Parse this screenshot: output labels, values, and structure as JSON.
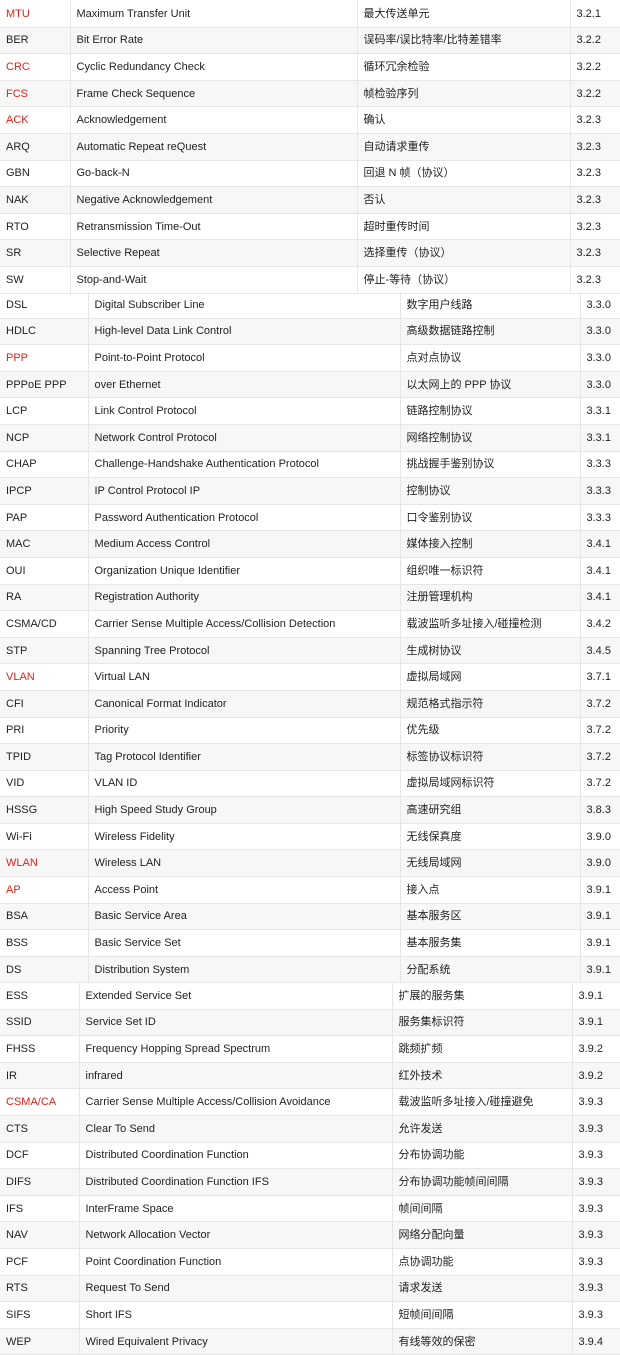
{
  "colors": {
    "highlight": "#e2231a",
    "text": "#222222",
    "grid": "#e6e6e6",
    "stripe": "#f7f7f7"
  },
  "blocks": [
    {
      "rows": [
        {
          "abbr": "MTU",
          "full": "Maximum Transfer Unit",
          "cn": "最大传送单元",
          "sec": "3.2.1",
          "hl": true
        },
        {
          "abbr": "BER",
          "full": "Bit Error Rate",
          "cn": "误码率/误比特率/比特差错率",
          "sec": "3.2.2",
          "hl": false
        },
        {
          "abbr": "CRC",
          "full": " Cyclic Redundancy Check",
          "cn": "循环冗余检验",
          "sec": "3.2.2",
          "hl": true
        },
        {
          "abbr": "FCS",
          "full": "Frame Check Sequence",
          "cn": "帧检验序列",
          "sec": "3.2.2",
          "hl": true
        },
        {
          "abbr": "ACK",
          "full": " Acknowledgement",
          "cn": "确认",
          "sec": "3.2.3",
          "hl": true
        },
        {
          "abbr": "ARQ",
          "full": "Automatic Repeat reQuest",
          "cn": "自动请求重传",
          "sec": "3.2.3",
          "hl": false
        },
        {
          "abbr": "GBN",
          "full": "Go-back-N",
          "cn": "回退 N 帧（协议）",
          "sec": "3.2.3",
          "hl": false
        },
        {
          "abbr": "NAK",
          "full": "Negative Acknowledgement",
          "cn": "否认",
          "sec": "3.2.3",
          "hl": false
        },
        {
          "abbr": "RTO",
          "full": "Retransmission Time-Out",
          "cn": "超时重传时间",
          "sec": "3.2.3",
          "hl": false
        },
        {
          "abbr": "SR",
          "full": "Selective Repeat",
          "cn": "选择重传（协议）",
          "sec": "3.2.3",
          "hl": false
        },
        {
          "abbr": "SW",
          "full": "Stop-and-Wait",
          "cn": "停止-等待（协议）",
          "sec": "3.2.3",
          "hl": false
        }
      ]
    },
    {
      "rows": [
        {
          "abbr": "DSL",
          "full": "Digital Subscriber Line",
          "cn": "数字用户线路",
          "sec": "3.3.0",
          "hl": false
        },
        {
          "abbr": "HDLC",
          "full": "High-level Data Link Control",
          "cn": "高级数据链路控制",
          "sec": "3.3.0",
          "hl": false
        },
        {
          "abbr": "PPP",
          "full": "Point-to-Point Protocol",
          "cn": "点对点协议",
          "sec": "3.3.0",
          "hl": true
        },
        {
          "abbr": "PPPoE PPP",
          "full": "over Ethernet",
          "cn": "以太网上的 PPP 协议",
          "sec": "3.3.0",
          "hl": false
        },
        {
          "abbr": "LCP",
          "full": "Link Control Protocol",
          "cn": "链路控制协议",
          "sec": "3.3.1",
          "hl": false
        },
        {
          "abbr": "NCP",
          "full": "Network Control Protocol",
          "cn": "网络控制协议",
          "sec": "3.3.1",
          "hl": false
        },
        {
          "abbr": "CHAP",
          "full": "Challenge-Handshake Authentication Protocol",
          "cn": "挑战握手鉴别协议",
          "sec": "3.3.3",
          "hl": false
        },
        {
          "abbr": "IPCP",
          "full": "IP Control Protocol IP",
          "cn": "控制协议",
          "sec": "3.3.3",
          "hl": false
        },
        {
          "abbr": "PAP",
          "full": "Password Authentication Protocol",
          "cn": "口令鉴别协议",
          "sec": "3.3.3",
          "hl": false
        },
        {
          "abbr": "MAC",
          "full": " Medium Access Control",
          "cn": "媒体接入控制",
          "sec": "3.4.1",
          "hl": false
        },
        {
          "abbr": "OUI",
          "full": "Organization Unique Identifier",
          "cn": "组织唯一标识符",
          "sec": "3.4.1",
          "hl": false
        },
        {
          "abbr": "RA",
          "full": "Registration Authority",
          "cn": "注册管理机构",
          "sec": "3.4.1",
          "hl": false
        },
        {
          "abbr": "CSMA/CD",
          "full": " Carrier Sense Multiple Access/Collision Detection",
          "cn": "载波监听多址接入/碰撞检测",
          "sec": "3.4.2",
          "hl": false
        },
        {
          "abbr": "STP",
          "full": "Spanning Tree Protocol",
          "cn": "生成树协议",
          "sec": "3.4.5",
          "hl": false
        },
        {
          "abbr": "VLAN",
          "full": "Virtual LAN",
          "cn": "虚拟局域网",
          "sec": "3.7.1",
          "hl": true
        },
        {
          "abbr": "CFI",
          "full": "Canonical Format Indicator",
          "cn": "规范格式指示符",
          "sec": "3.7.2",
          "hl": false
        },
        {
          "abbr": "PRI",
          "full": "Priority",
          "cn": "优先级",
          "sec": "3.7.2",
          "hl": false
        },
        {
          "abbr": "TPID",
          "full": "Tag Protocol Identifier",
          "cn": "标签协议标识符",
          "sec": "3.7.2",
          "hl": false
        },
        {
          "abbr": "VID",
          "full": "VLAN ID",
          "cn": "虚拟局域网标识符",
          "sec": "3.7.2",
          "hl": false
        },
        {
          "abbr": "HSSG",
          "full": "High Speed Study Group",
          "cn": "高速研究组",
          "sec": "3.8.3",
          "hl": false
        },
        {
          "abbr": "Wi-Fi",
          "full": "Wireless Fidelity",
          "cn": "无线保真度",
          "sec": "3.9.0",
          "hl": false
        },
        {
          "abbr": "WLAN",
          "full": "Wireless LAN",
          "cn": "无线局域网",
          "sec": "3.9.0",
          "hl": true
        },
        {
          "abbr": "AP",
          "full": "Access Point",
          "cn": "接入点",
          "sec": "3.9.1",
          "hl": true
        },
        {
          "abbr": "BSA",
          "full": "Basic Service Area",
          "cn": "基本服务区",
          "sec": "3.9.1",
          "hl": false
        },
        {
          "abbr": "BSS",
          "full": "Basic Service Set",
          "cn": "基本服务集",
          "sec": "3.9.1",
          "hl": false
        },
        {
          "abbr": "DS",
          "full": "Distribution System",
          "cn": "分配系统",
          "sec": "3.9.1",
          "hl": false
        }
      ]
    },
    {
      "rows": [
        {
          "abbr": "ESS",
          "full": "Extended Service Set",
          "cn": "扩展的服务集",
          "sec": "3.9.1",
          "hl": false
        },
        {
          "abbr": "SSID",
          "full": "Service Set ID",
          "cn": "服务集标识符",
          "sec": "3.9.1",
          "hl": false
        },
        {
          "abbr": "FHSS",
          "full": " Frequency Hopping Spread Spectrum",
          "cn": "跳频扩频",
          "sec": "3.9.2",
          "hl": false
        },
        {
          "abbr": "IR",
          "full": "infrared",
          "cn": "红外技术",
          "sec": "3.9.2",
          "hl": false
        },
        {
          "abbr": "CSMA/CA",
          "full": "Carrier Sense Multiple Access/Collision Avoidance",
          "cn": "载波监听多址接入/碰撞避免",
          "sec": "3.9.3",
          "hl": true
        },
        {
          "abbr": "CTS",
          "full": "Clear To Send",
          "cn": "允许发送",
          "sec": "3.9.3",
          "hl": false
        },
        {
          "abbr": "DCF",
          "full": "Distributed Coordination Function",
          "cn": "分布协调功能",
          "sec": "3.9.3",
          "hl": false
        },
        {
          "abbr": "DIFS",
          "full": "Distributed Coordination Function IFS",
          "cn": "分布协调功能帧间间隔",
          "sec": "3.9.3",
          "hl": false
        },
        {
          "abbr": "IFS",
          "full": "InterFrame Space",
          "cn": "帧间间隔",
          "sec": "3.9.3",
          "hl": false
        },
        {
          "abbr": "NAV",
          "full": "Network Allocation Vector",
          "cn": "网络分配向量",
          "sec": "3.9.3",
          "hl": false
        },
        {
          "abbr": "PCF",
          "full": "Point Coordination Function",
          "cn": "点协调功能",
          "sec": "3.9.3",
          "hl": false
        },
        {
          "abbr": "RTS",
          "full": "Request To Send",
          "cn": "请求发送",
          "sec": "3.9.3",
          "hl": false
        },
        {
          "abbr": "SIFS",
          "full": "Short IFS",
          "cn": "短帧间间隔",
          "sec": "3.9.3",
          "hl": false
        },
        {
          "abbr": "WEP",
          "full": "Wired Equivalent Privacy",
          "cn": "有线等效的保密",
          "sec": "3.9.4",
          "hl": false
        }
      ]
    }
  ]
}
